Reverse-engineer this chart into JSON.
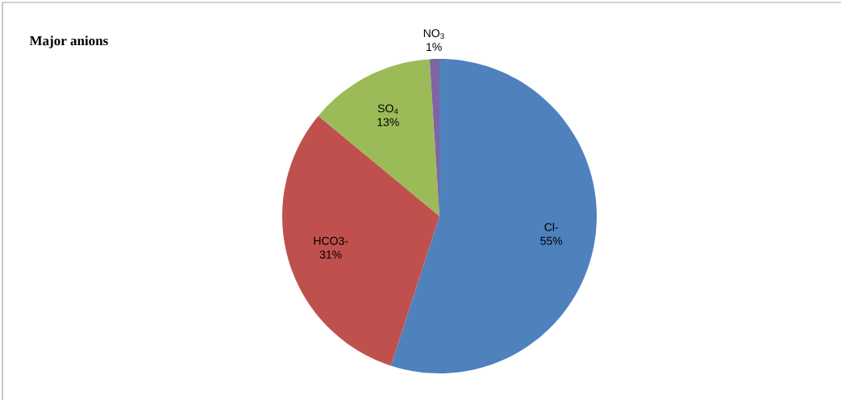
{
  "chart_data": {
    "type": "pie",
    "title": "Major anions",
    "categories": [
      "Cl-",
      "HCO3-",
      "SO$_{4}$",
      "NO$_{3}$"
    ],
    "values": [
      55,
      31,
      13,
      1
    ],
    "value_labels": [
      "55%",
      "31%",
      "13%",
      "1%"
    ],
    "colors": [
      "#4f81bd",
      "#c0504d",
      "#9bbb59",
      "#8064a2"
    ]
  }
}
